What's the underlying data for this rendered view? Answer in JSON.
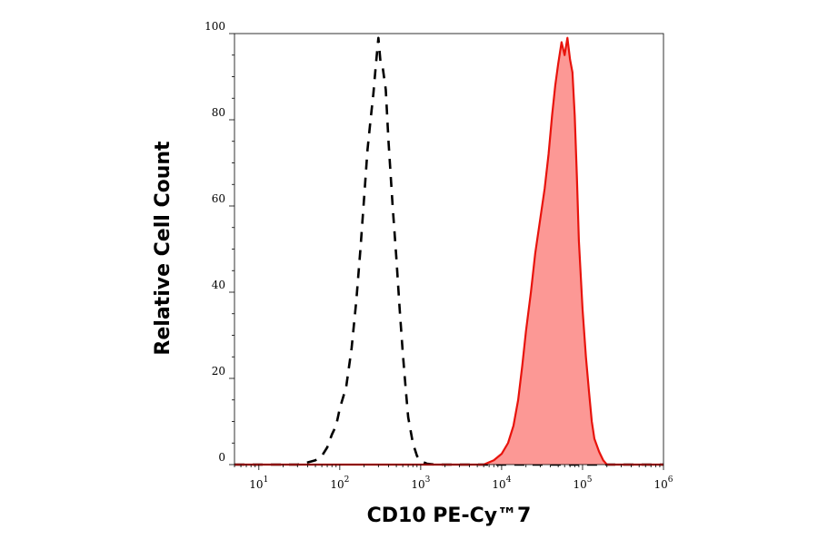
{
  "chart_data": {
    "type": "area",
    "title": "",
    "xlabel": "CD10 PE-Cy™7",
    "ylabel": "Relative Cell Count",
    "x_scale": "log",
    "xlim": [
      5,
      1000000
    ],
    "ylim": [
      0,
      100
    ],
    "x_ticks": [
      {
        "value": 10,
        "base": "10",
        "exp": "1"
      },
      {
        "value": 100,
        "base": "10",
        "exp": "2"
      },
      {
        "value": 1000,
        "base": "10",
        "exp": "3"
      },
      {
        "value": 10000,
        "base": "10",
        "exp": "4"
      },
      {
        "value": 100000,
        "base": "10",
        "exp": "5"
      },
      {
        "value": 1000000,
        "base": "10",
        "exp": "6"
      }
    ],
    "y_ticks": [
      {
        "value": 0,
        "label": "0"
      },
      {
        "value": 20,
        "label": "20"
      },
      {
        "value": 40,
        "label": "40"
      },
      {
        "value": 60,
        "label": "60"
      },
      {
        "value": 80,
        "label": "80"
      },
      {
        "value": 100,
        "label": "100"
      }
    ],
    "grid": false,
    "legend": "none",
    "series": [
      {
        "style": "dashed-outline",
        "color": "#000000",
        "points": [
          [
            5,
            0
          ],
          [
            30,
            0
          ],
          [
            40,
            0.5
          ],
          [
            50,
            1
          ],
          [
            60,
            2
          ],
          [
            70,
            4
          ],
          [
            80,
            7
          ],
          [
            90,
            9
          ],
          [
            100,
            13
          ],
          [
            120,
            18
          ],
          [
            140,
            27
          ],
          [
            160,
            38
          ],
          [
            180,
            50
          ],
          [
            200,
            62
          ],
          [
            220,
            73
          ],
          [
            240,
            80
          ],
          [
            260,
            86
          ],
          [
            280,
            93
          ],
          [
            300,
            99
          ],
          [
            320,
            93
          ],
          [
            340,
            92
          ],
          [
            370,
            87
          ],
          [
            400,
            75
          ],
          [
            450,
            60
          ],
          [
            500,
            48
          ],
          [
            550,
            36
          ],
          [
            600,
            26
          ],
          [
            650,
            18
          ],
          [
            700,
            11
          ],
          [
            800,
            5
          ],
          [
            900,
            2
          ],
          [
            1000,
            0.8
          ],
          [
            1200,
            0.2
          ],
          [
            1500,
            0
          ],
          [
            1000000,
            0
          ]
        ]
      },
      {
        "style": "filled",
        "color": "#e8130c",
        "fill": "#fc9895",
        "points": [
          [
            5,
            0
          ],
          [
            6000,
            0
          ],
          [
            8000,
            1
          ],
          [
            10000,
            2.5
          ],
          [
            12000,
            5
          ],
          [
            14000,
            9
          ],
          [
            16000,
            15
          ],
          [
            18000,
            23
          ],
          [
            20000,
            31
          ],
          [
            23000,
            40
          ],
          [
            26000,
            49
          ],
          [
            30000,
            57
          ],
          [
            34000,
            64
          ],
          [
            38000,
            72
          ],
          [
            42000,
            81
          ],
          [
            46000,
            88
          ],
          [
            50000,
            93
          ],
          [
            55000,
            98
          ],
          [
            60000,
            95
          ],
          [
            65000,
            99
          ],
          [
            70000,
            94
          ],
          [
            75000,
            91
          ],
          [
            80000,
            81
          ],
          [
            85000,
            67
          ],
          [
            90000,
            52
          ],
          [
            100000,
            36
          ],
          [
            110000,
            25
          ],
          [
            120000,
            17
          ],
          [
            130000,
            10
          ],
          [
            140000,
            6
          ],
          [
            160000,
            3
          ],
          [
            180000,
            1
          ],
          [
            200000,
            0
          ],
          [
            1000000,
            0
          ]
        ]
      }
    ]
  }
}
